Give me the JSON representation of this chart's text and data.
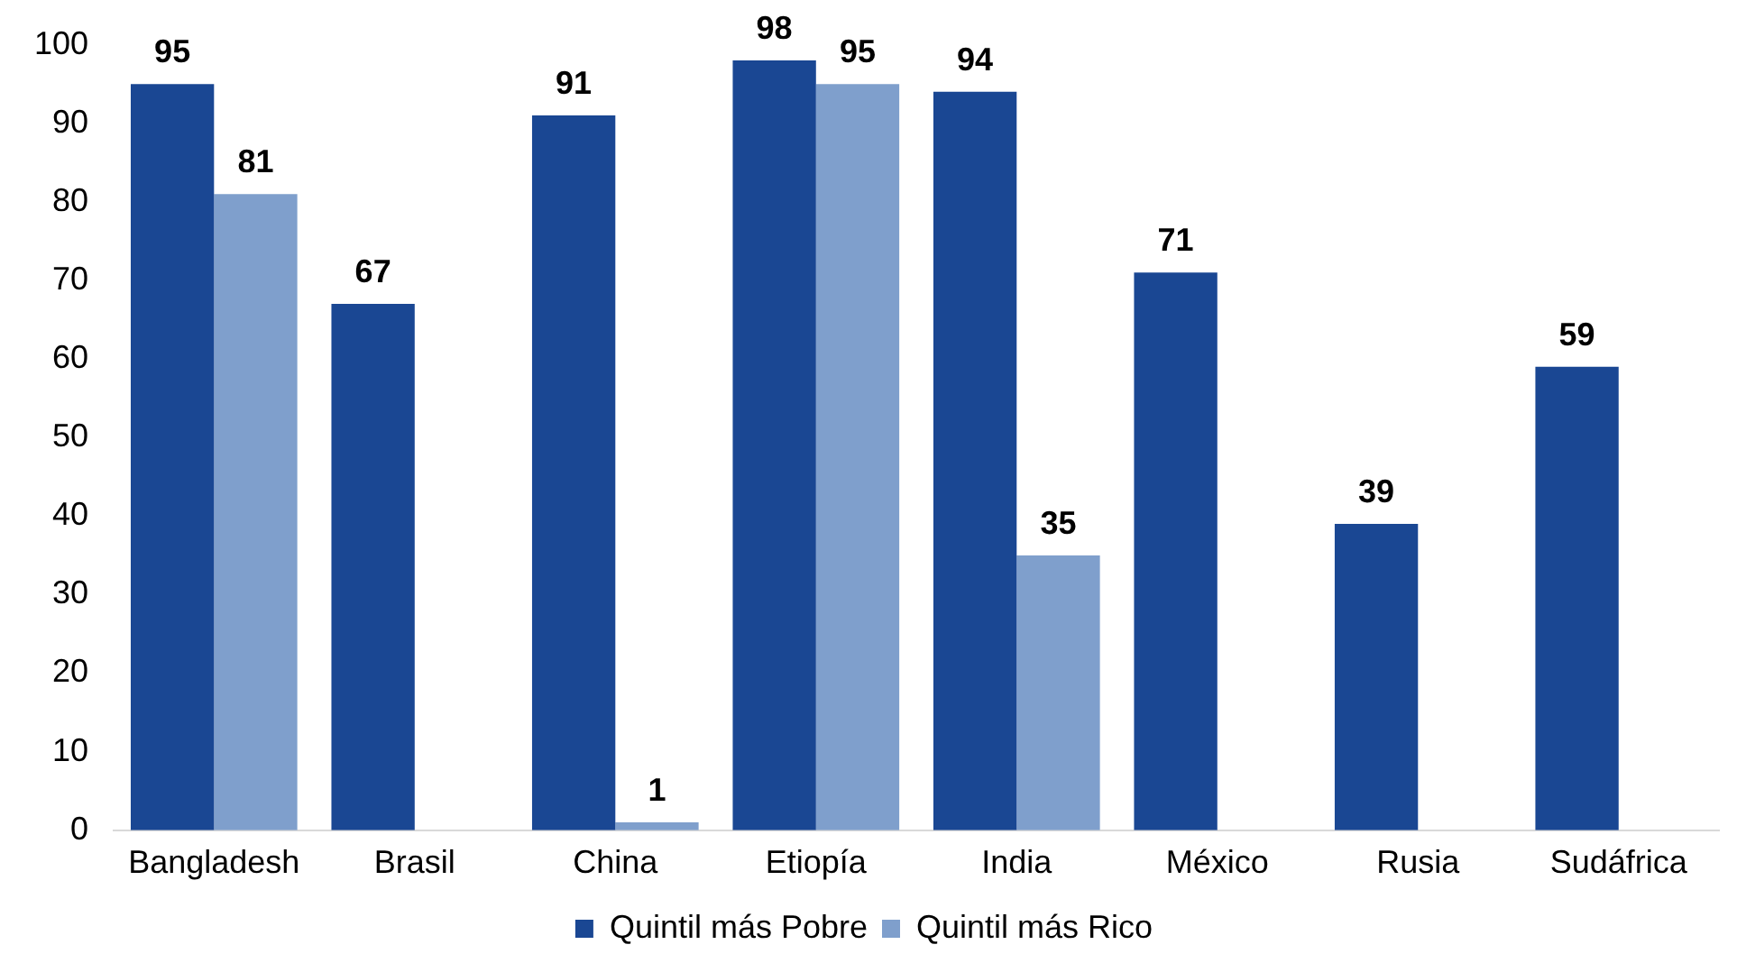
{
  "chart_data": {
    "type": "bar",
    "categories": [
      "Bangladesh",
      "Brasil",
      "China",
      "Etiopía",
      "India",
      "México",
      "Rusia",
      "Sudáfrica"
    ],
    "series": [
      {
        "name": "Quintil más Pobre",
        "color": "#1a4793",
        "values": [
          95,
          67,
          91,
          98,
          94,
          71,
          39,
          59
        ]
      },
      {
        "name": "Quintil más Rico",
        "color": "#7f9fcc",
        "values": [
          81,
          null,
          1,
          95,
          35,
          null,
          null,
          null
        ]
      }
    ],
    "ylim": [
      0,
      100
    ],
    "yticks": [
      0,
      10,
      20,
      30,
      40,
      50,
      60,
      70,
      80,
      90,
      100
    ],
    "grid": false,
    "legend": "bottom",
    "data_labels": true
  }
}
